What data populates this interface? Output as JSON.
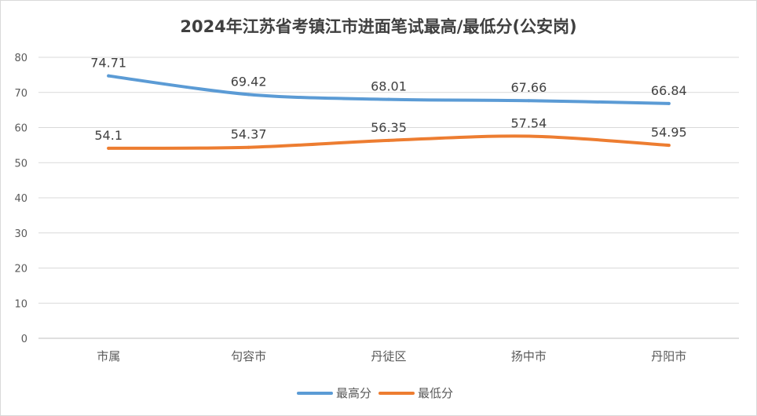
{
  "chart_data": {
    "type": "line",
    "title": "2024年江苏省考镇江市进面笔试最高/最低分(公安岗)",
    "xlabel": "",
    "ylabel": "",
    "categories": [
      "市属",
      "句容市",
      "丹徒区",
      "扬中市",
      "丹阳市"
    ],
    "ylim": [
      0,
      80
    ],
    "yticks": [
      0,
      10,
      20,
      30,
      40,
      50,
      60,
      70,
      80
    ],
    "grid": true,
    "legend_position": "bottom",
    "series": [
      {
        "name": "最高分",
        "color": "#5b9bd5",
        "values": [
          74.71,
          69.42,
          68.01,
          67.66,
          66.84
        ],
        "labels": [
          "74.71",
          "69.42",
          "68.01",
          "67.66",
          "66.84"
        ]
      },
      {
        "name": "最低分",
        "color": "#ed7d31",
        "values": [
          54.1,
          54.37,
          56.35,
          57.54,
          54.95
        ],
        "labels": [
          "54.1",
          "54.37",
          "56.35",
          "57.54",
          "54.95"
        ]
      }
    ]
  }
}
